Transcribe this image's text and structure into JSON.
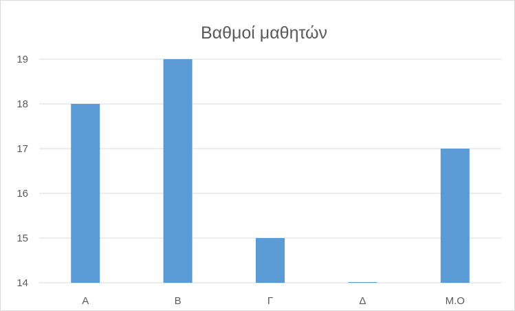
{
  "chart_data": {
    "type": "bar",
    "title": "Βαθμοί μαθητών",
    "xlabel": "",
    "ylabel": "",
    "categories": [
      "Α",
      "Β",
      "Γ",
      "Δ",
      "Μ.Ο"
    ],
    "values": [
      18,
      19,
      15,
      14,
      17
    ],
    "ylim": [
      14,
      19
    ],
    "yticks": [
      14,
      15,
      16,
      17,
      18,
      19
    ],
    "grid": true,
    "legend": "none",
    "bar_color": "#5b9bd5",
    "grid_color": "#d9d9d9",
    "text_color": "#595959"
  }
}
